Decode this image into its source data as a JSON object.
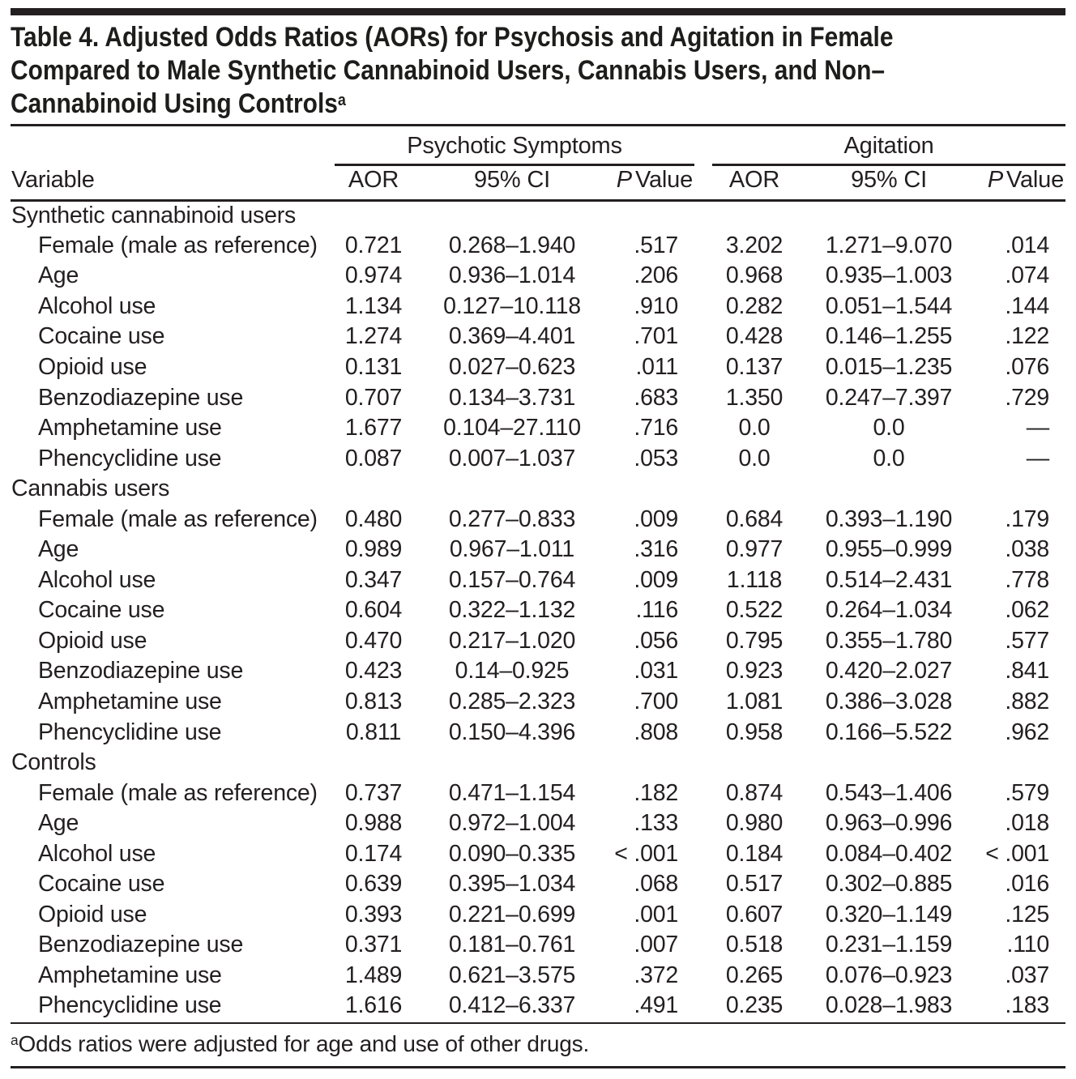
{
  "title": {
    "lines": [
      "Table 4. Adjusted Odds Ratios (AORs) for Psychosis and Agitation in Female",
      "Compared to Male Synthetic Cannabinoid Users, Cannabis Users, and Non–",
      "Cannabinoid Using Controls"
    ],
    "superscript": "a"
  },
  "columns": {
    "variable_label": "Variable",
    "psychotic_group_label": "Psychotic Symptoms",
    "agitation_group_label": "Agitation",
    "aor_label": "AOR",
    "ci_label": "95% CI",
    "p_label_italic": "P",
    "p_label_rest": "Value"
  },
  "sections": [
    {
      "label": "Synthetic cannabinoid users",
      "rows": [
        {
          "variable": "Female (male as reference)",
          "ps_aor": "0.721",
          "ps_ci": "0.268–1.940",
          "ps_p": ".517",
          "ag_aor": "3.202",
          "ag_ci": "1.271–9.070",
          "ag_p": ".014"
        },
        {
          "variable": "Age",
          "ps_aor": "0.974",
          "ps_ci": "0.936–1.014",
          "ps_p": ".206",
          "ag_aor": "0.968",
          "ag_ci": "0.935–1.003",
          "ag_p": ".074"
        },
        {
          "variable": "Alcohol use",
          "ps_aor": "1.134",
          "ps_ci": "0.127–10.118",
          "ps_p": ".910",
          "ag_aor": "0.282",
          "ag_ci": "0.051–1.544",
          "ag_p": ".144"
        },
        {
          "variable": "Cocaine use",
          "ps_aor": "1.274",
          "ps_ci": "0.369–4.401",
          "ps_p": ".701",
          "ag_aor": "0.428",
          "ag_ci": "0.146–1.255",
          "ag_p": ".122"
        },
        {
          "variable": "Opioid use",
          "ps_aor": "0.131",
          "ps_ci": "0.027–0.623",
          "ps_p": ".011",
          "ag_aor": "0.137",
          "ag_ci": "0.015–1.235",
          "ag_p": ".076"
        },
        {
          "variable": "Benzodiazepine use",
          "ps_aor": "0.707",
          "ps_ci": "0.134–3.731",
          "ps_p": ".683",
          "ag_aor": "1.350",
          "ag_ci": "0.247–7.397",
          "ag_p": ".729"
        },
        {
          "variable": "Amphetamine use",
          "ps_aor": "1.677",
          "ps_ci": "0.104–27.110",
          "ps_p": ".716",
          "ag_aor": "0.0",
          "ag_ci": "0.0",
          "ag_p": "—"
        },
        {
          "variable": "Phencyclidine use",
          "ps_aor": "0.087",
          "ps_ci": "0.007–1.037",
          "ps_p": ".053",
          "ag_aor": "0.0",
          "ag_ci": "0.0",
          "ag_p": "—"
        }
      ]
    },
    {
      "label": "Cannabis users",
      "rows": [
        {
          "variable": "Female (male as reference)",
          "ps_aor": "0.480",
          "ps_ci": "0.277–0.833",
          "ps_p": ".009",
          "ag_aor": "0.684",
          "ag_ci": "0.393–1.190",
          "ag_p": ".179"
        },
        {
          "variable": "Age",
          "ps_aor": "0.989",
          "ps_ci": "0.967–1.011",
          "ps_p": ".316",
          "ag_aor": "0.977",
          "ag_ci": "0.955–0.999",
          "ag_p": ".038"
        },
        {
          "variable": "Alcohol use",
          "ps_aor": "0.347",
          "ps_ci": "0.157–0.764",
          "ps_p": ".009",
          "ag_aor": "1.118",
          "ag_ci": "0.514–2.431",
          "ag_p": ".778"
        },
        {
          "variable": "Cocaine use",
          "ps_aor": "0.604",
          "ps_ci": "0.322–1.132",
          "ps_p": ".116",
          "ag_aor": "0.522",
          "ag_ci": "0.264–1.034",
          "ag_p": ".062"
        },
        {
          "variable": "Opioid use",
          "ps_aor": "0.470",
          "ps_ci": "0.217–1.020",
          "ps_p": ".056",
          "ag_aor": "0.795",
          "ag_ci": "0.355–1.780",
          "ag_p": ".577"
        },
        {
          "variable": "Benzodiazepine use",
          "ps_aor": "0.423",
          "ps_ci": "0.14–0.925",
          "ps_p": ".031",
          "ag_aor": "0.923",
          "ag_ci": "0.420–2.027",
          "ag_p": ".841"
        },
        {
          "variable": "Amphetamine use",
          "ps_aor": "0.813",
          "ps_ci": "0.285–2.323",
          "ps_p": ".700",
          "ag_aor": "1.081",
          "ag_ci": "0.386–3.028",
          "ag_p": ".882"
        },
        {
          "variable": "Phencyclidine use",
          "ps_aor": "0.811",
          "ps_ci": "0.150–4.396",
          "ps_p": ".808",
          "ag_aor": "0.958",
          "ag_ci": "0.166–5.522",
          "ag_p": ".962"
        }
      ]
    },
    {
      "label": "Controls",
      "rows": [
        {
          "variable": "Female (male as reference)",
          "ps_aor": "0.737",
          "ps_ci": "0.471–1.154",
          "ps_p": ".182",
          "ag_aor": "0.874",
          "ag_ci": "0.543–1.406",
          "ag_p": ".579"
        },
        {
          "variable": "Age",
          "ps_aor": "0.988",
          "ps_ci": "0.972–1.004",
          "ps_p": ".133",
          "ag_aor": "0.980",
          "ag_ci": "0.963–0.996",
          "ag_p": ".018"
        },
        {
          "variable": "Alcohol use",
          "ps_aor": "0.174",
          "ps_ci": "0.090–0.335",
          "ps_p": "< .001",
          "ag_aor": "0.184",
          "ag_ci": "0.084–0.402",
          "ag_p": "< .001"
        },
        {
          "variable": "Cocaine use",
          "ps_aor": "0.639",
          "ps_ci": "0.395–1.034",
          "ps_p": ".068",
          "ag_aor": "0.517",
          "ag_ci": "0.302–0.885",
          "ag_p": ".016"
        },
        {
          "variable": "Opioid use",
          "ps_aor": "0.393",
          "ps_ci": "0.221–0.699",
          "ps_p": ".001",
          "ag_aor": "0.607",
          "ag_ci": "0.320–1.149",
          "ag_p": ".125"
        },
        {
          "variable": "Benzodiazepine use",
          "ps_aor": "0.371",
          "ps_ci": "0.181–0.761",
          "ps_p": ".007",
          "ag_aor": "0.518",
          "ag_ci": "0.231–1.159",
          "ag_p": ".110"
        },
        {
          "variable": "Amphetamine use",
          "ps_aor": "1.489",
          "ps_ci": "0.621–3.575",
          "ps_p": ".372",
          "ag_aor": "0.265",
          "ag_ci": "0.076–0.923",
          "ag_p": ".037"
        },
        {
          "variable": "Phencyclidine use",
          "ps_aor": "1.616",
          "ps_ci": "0.412–6.337",
          "ps_p": ".491",
          "ag_aor": "0.235",
          "ag_ci": "0.028–1.983",
          "ag_p": ".183"
        }
      ]
    }
  ],
  "footnote": {
    "marker": "a",
    "text": "Odds ratios were adjusted for age and use of other drugs."
  }
}
